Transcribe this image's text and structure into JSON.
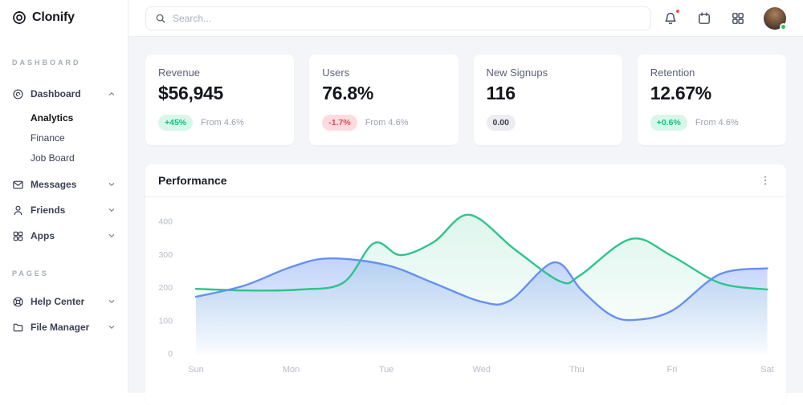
{
  "app": {
    "name": "Clonify"
  },
  "topbar": {
    "search_placeholder": "Search...",
    "icons": [
      "bell-icon",
      "calendar-icon",
      "apps-grid-icon",
      "user-avatar"
    ],
    "notification_dot_color": "#f25050",
    "status_dot_color": "#22c55e"
  },
  "sidebar": {
    "section1_label": "DASHBOARD",
    "section2_label": "PAGES",
    "dashboard": {
      "label": "Dashboard",
      "expanded": true,
      "sub": [
        {
          "label": "Analytics",
          "active": true
        },
        {
          "label": "Finance",
          "active": false
        },
        {
          "label": "Job Board",
          "active": false
        }
      ]
    },
    "messages_label": "Messages",
    "friends_label": "Friends",
    "apps_label": "Apps",
    "help_label": "Help Center",
    "files_label": "File Manager"
  },
  "stats": [
    {
      "title": "Revenue",
      "value": "$56,945",
      "badge": "+45%",
      "trend": "up",
      "note": "From 4.6%"
    },
    {
      "title": "Users",
      "value": "76.8%",
      "badge": "-1.7%",
      "trend": "down",
      "note": "From 4.6%"
    },
    {
      "title": "New Signups",
      "value": "116",
      "badge": "0.00",
      "trend": "neutral",
      "note": ""
    },
    {
      "title": "Retention",
      "value": "12.67%",
      "badge": "+0.6%",
      "trend": "up",
      "note": "From 4.6%"
    }
  ],
  "performance": {
    "title": "Performance"
  },
  "chart_data": {
    "type": "area",
    "title": "Performance",
    "x_labels": [
      "Sun",
      "Mon",
      "Tue",
      "Wed",
      "Thu",
      "Fri",
      "Sat"
    ],
    "y_ticks": [
      0,
      100,
      200,
      300,
      400
    ],
    "ylim": [
      0,
      440
    ],
    "grid": false,
    "legend": "none",
    "axis_label_color": "#b7bbc5",
    "series": [
      {
        "name": "series-green",
        "color": "#2ec48c",
        "fill_from": "rgba(46,196,140,0.16)",
        "fill_to": "rgba(46,196,140,0)",
        "points": [
          [
            0,
            196
          ],
          [
            0.55,
            191
          ],
          [
            1.1,
            194
          ],
          [
            1.55,
            215
          ],
          [
            1.87,
            334
          ],
          [
            2.15,
            298
          ],
          [
            2.5,
            338
          ],
          [
            2.87,
            420
          ],
          [
            3.35,
            315
          ],
          [
            3.83,
            218
          ],
          [
            4.04,
            238
          ],
          [
            4.57,
            347
          ],
          [
            5.0,
            295
          ],
          [
            5.5,
            214
          ],
          [
            6.0,
            194
          ]
        ]
      },
      {
        "name": "series-blue",
        "color": "#6690f2",
        "fill_from": "rgba(102,144,242,0.40)",
        "fill_to": "rgba(102,144,242,0.03)",
        "points": [
          [
            0,
            172
          ],
          [
            0.5,
            205
          ],
          [
            1.0,
            262
          ],
          [
            1.4,
            288
          ],
          [
            2.0,
            268
          ],
          [
            2.5,
            213
          ],
          [
            3.0,
            157
          ],
          [
            3.3,
            161
          ],
          [
            3.76,
            276
          ],
          [
            4.05,
            192
          ],
          [
            4.35,
            118
          ],
          [
            4.6,
            102
          ],
          [
            5.0,
            130
          ],
          [
            5.5,
            240
          ],
          [
            6.0,
            258
          ]
        ]
      }
    ]
  }
}
